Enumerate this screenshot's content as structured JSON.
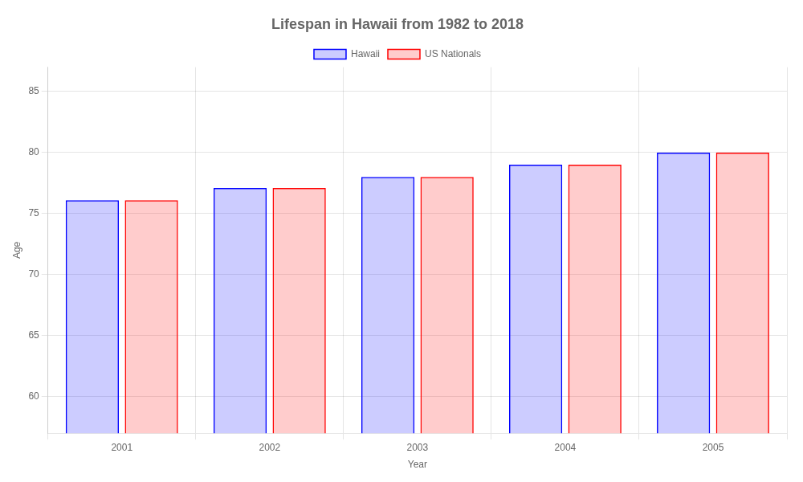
{
  "chart_data": {
    "type": "bar",
    "title": "Lifespan in Hawaii from 1982 to 2018",
    "x_label": "Year",
    "y_label": "Age",
    "categories": [
      "2001",
      "2002",
      "2003",
      "2004",
      "2005"
    ],
    "series": [
      {
        "name": "Hawaii",
        "color": "#0000ff",
        "values": [
          76.1,
          77.1,
          78.0,
          79.0,
          80.0
        ]
      },
      {
        "name": "US Nationals",
        "color": "#ff0000",
        "values": [
          76.1,
          77.1,
          78.0,
          79.0,
          80.0
        ]
      }
    ],
    "ylim": [
      57,
      87
    ],
    "yticks": [
      60,
      65,
      70,
      75,
      80,
      85
    ],
    "grid": true,
    "legend": "top"
  }
}
